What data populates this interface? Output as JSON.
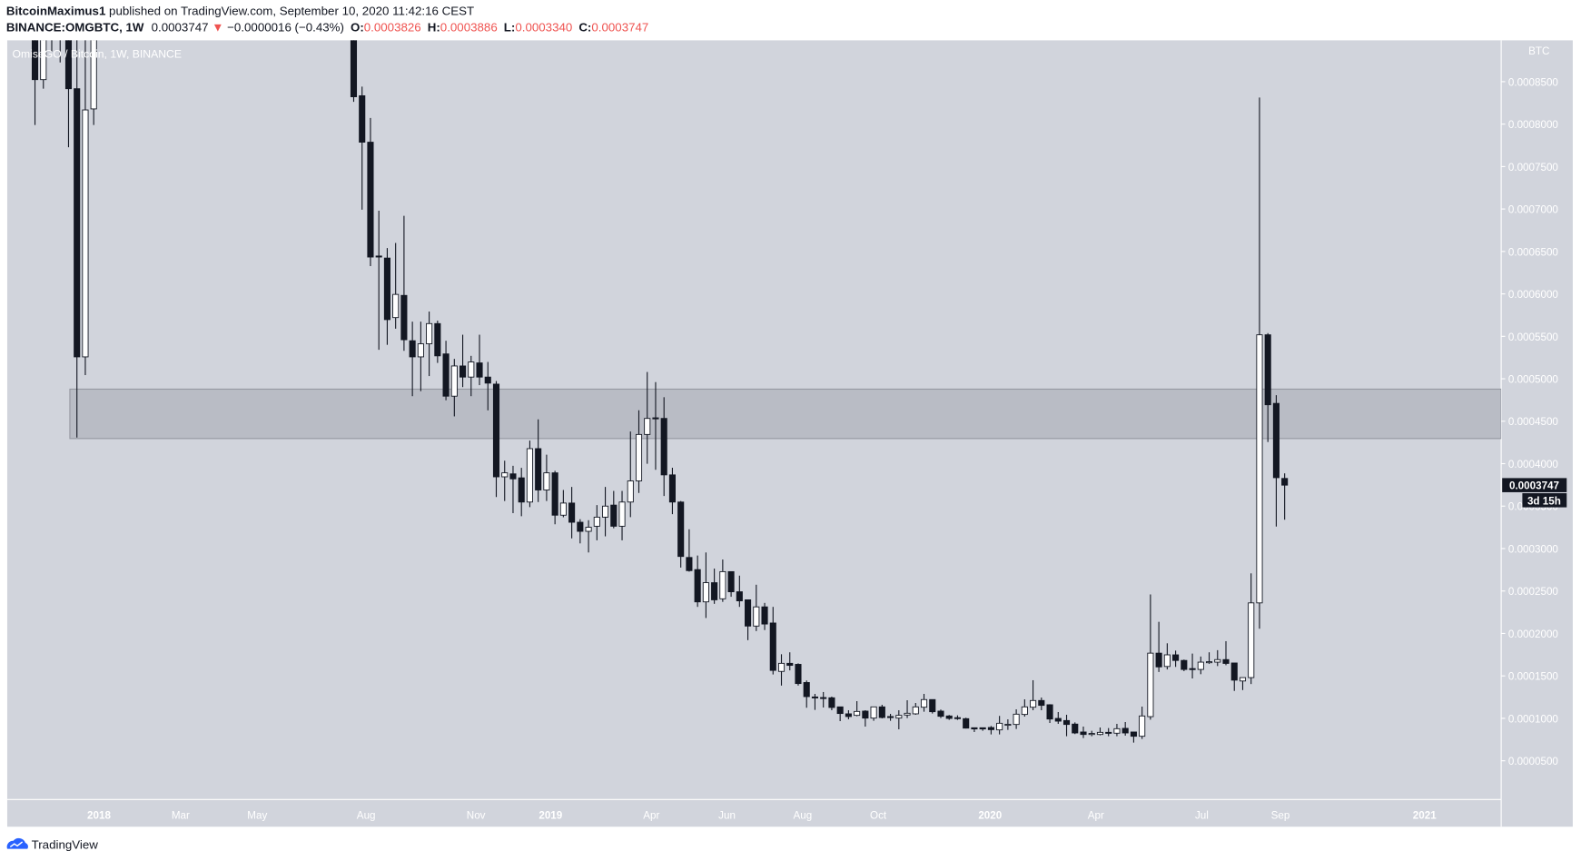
{
  "header": {
    "author": "BitcoinMaximus1",
    "published": " published on TradingView.com, September 10, 2020 11:42:16 CEST",
    "symbol": "BINANCE:OMGBTC, 1W",
    "last": "0.0003747",
    "change": "−0.0000016 (−0.43%)",
    "o_label": "O:",
    "o": "0.0003826",
    "h_label": "H:",
    "h": "0.0003886",
    "l_label": "L:",
    "l": "0.0003340",
    "c_label": "C:",
    "c": "0.0003747",
    "down_color": "#ef5350"
  },
  "chart_title": "OmiseGO / Bitcoin, 1W, BINANCE",
  "footer": {
    "brand": "TradingView"
  },
  "chart_data": {
    "type": "candlestick",
    "interval": "1W",
    "ylabel": "BTC",
    "ylim": [
      0.0,
      0.000899
    ],
    "grid": false,
    "colors": {
      "up": "#ffffff",
      "down": "#131722",
      "background": "#d1d4dc",
      "zone": "#b9bcc5"
    },
    "y_ticks": [
      "0.0008500",
      "0.0008000",
      "0.0007500",
      "0.0007000",
      "0.0006500",
      "0.0006000",
      "0.0005500",
      "0.0005000",
      "0.0004500",
      "0.0004000",
      "0.0003500",
      "0.0003000",
      "0.0002500",
      "0.0002000",
      "0.0001500",
      "0.0001000",
      "0.0000500"
    ],
    "x_ticks": [
      "2018",
      "Mar",
      "May",
      "Aug",
      "Nov",
      "2019",
      "Apr",
      "Jun",
      "Aug",
      "Oct",
      "2020",
      "Apr",
      "Jul",
      "Sep",
      "2021"
    ],
    "last_price": "0.0003747",
    "countdown": "3d 15h",
    "zone": {
      "top": 0.0004878,
      "bottom": 0.0004296,
      "start": "2017-12-04"
    },
    "columns": [
      "date",
      "open",
      "high",
      "low",
      "close"
    ],
    "candles": [
      [
        "2017-10-30",
        0.00095,
        0.00098,
        0.0007989,
        0.0008524
      ],
      [
        "2017-11-06",
        0.0008524,
        0.00096,
        0.0008417,
        0.00093
      ],
      [
        "2017-11-13",
        0.00094,
        0.00099,
        0.0008856,
        0.00096
      ],
      [
        "2017-11-20",
        0.00097,
        0.001,
        0.0008726,
        0.00093
      ],
      [
        "2017-11-27",
        0.00094,
        0.00098,
        0.0007728,
        0.0008417
      ],
      [
        "2017-12-04",
        0.0008417,
        0.00092,
        0.0004308,
        0.0005258
      ],
      [
        "2017-12-11",
        0.0005258,
        0.00091,
        0.0005044,
        0.0008167
      ],
      [
        "2017-12-18",
        0.0008179,
        0.00105,
        0.0007989,
        0.00098
      ],
      [
        "2018-07-23",
        0.00092,
        0.00094,
        0.0008262,
        0.0008322
      ],
      [
        "2018-07-30",
        0.0008334,
        0.0008441,
        0.0006992,
        0.0007787
      ],
      [
        "2018-08-06",
        0.0007787,
        0.0008072,
        0.0006327,
        0.0006434
      ],
      [
        "2018-08-13",
        0.0006446,
        0.000698,
        0.0005341,
        0.000644
      ],
      [
        "2018-08-20",
        0.0006422,
        0.000654,
        0.00054,
        0.0005697
      ],
      [
        "2018-08-27",
        0.0005721,
        0.00066,
        0.000559,
        0.0005994
      ],
      [
        "2018-09-03",
        0.0005982,
        0.000692,
        0.0005329,
        0.000546
      ],
      [
        "2018-09-10",
        0.0005448,
        0.0005673,
        0.0004795,
        0.0005258
      ],
      [
        "2018-09-17",
        0.0005258,
        0.0005673,
        0.0004854,
        0.0005412
      ],
      [
        "2018-09-24",
        0.0005412,
        0.0005792,
        0.0005032,
        0.000565
      ],
      [
        "2018-10-01",
        0.000565,
        0.0005685,
        0.0005187,
        0.000527
      ],
      [
        "2018-10-08",
        0.0005293,
        0.0005448,
        0.0004747,
        0.0004795
      ],
      [
        "2018-10-15",
        0.0004795,
        0.0005234,
        0.0004557,
        0.0005151
      ],
      [
        "2018-10-22",
        0.0005151,
        0.0005519,
        0.0004902,
        0.000502
      ],
      [
        "2018-10-29",
        0.000502,
        0.000527,
        0.0004795,
        0.0005198
      ],
      [
        "2018-11-05",
        0.0005187,
        0.0005519,
        0.0004925,
        0.000502
      ],
      [
        "2018-11-12",
        0.000502,
        0.0005198,
        0.0004628,
        0.0004949
      ],
      [
        "2018-11-19",
        0.0004937,
        0.0004973,
        0.0003607,
        0.0003845
      ],
      [
        "2018-11-26",
        0.0003845,
        0.0004035,
        0.000356,
        0.0003892
      ],
      [
        "2018-12-03",
        0.000388,
        0.0003975,
        0.0003417,
        0.0003821
      ],
      [
        "2018-12-10",
        0.0003833,
        0.0003951,
        0.0003381,
        0.0003548
      ],
      [
        "2018-12-17",
        0.0003548,
        0.0004272,
        0.0003488,
        0.0004177
      ],
      [
        "2018-12-24",
        0.0004177,
        0.0004522,
        0.0003548,
        0.000369
      ],
      [
        "2018-12-31",
        0.000369,
        0.0004106,
        0.000356,
        0.0003892
      ],
      [
        "2019-01-07",
        0.0003892,
        0.0003916,
        0.0003286,
        0.0003393
      ],
      [
        "2019-01-14",
        0.0003393,
        0.000369,
        0.0003369,
        0.0003536
      ],
      [
        "2019-01-21",
        0.0003536,
        0.0003726,
        0.000312,
        0.000331
      ],
      [
        "2019-01-28",
        0.000331,
        0.0003346,
        0.0003061,
        0.0003203
      ],
      [
        "2019-02-04",
        0.0003203,
        0.0003334,
        0.0002954,
        0.0003251
      ],
      [
        "2019-02-11",
        0.0003263,
        0.0003512,
        0.0003097,
        0.000337
      ],
      [
        "2019-02-18",
        0.000337,
        0.0003726,
        0.0003144,
        0.00035
      ],
      [
        "2019-02-25",
        0.0003512,
        0.0003679,
        0.0003239,
        0.0003263
      ],
      [
        "2019-03-04",
        0.0003263,
        0.0003679,
        0.0003097,
        0.0003548
      ],
      [
        "2019-03-11",
        0.0003548,
        0.0004379,
        0.000337,
        0.0003797
      ],
      [
        "2019-03-18",
        0.0003797,
        0.0004629,
        0.0003655,
        0.0004344
      ],
      [
        "2019-03-25",
        0.0004344,
        0.000508,
        0.0003999,
        0.0004533
      ],
      [
        "2019-04-01",
        0.000454,
        0.0004961,
        0.0003928,
        0.0004528
      ],
      [
        "2019-04-08",
        0.0004533,
        0.0004783,
        0.0003619,
        0.0003868
      ],
      [
        "2019-04-15",
        0.0003868,
        0.0003952,
        0.0003405,
        0.0003548
      ],
      [
        "2019-04-22",
        0.0003548,
        0.000356,
        0.0002776,
        0.0002907
      ],
      [
        "2019-04-29",
        0.0002895,
        0.0003227,
        0.0002728,
        0.000274
      ],
      [
        "2019-05-06",
        0.0002752,
        0.0002918,
        0.0002313,
        0.0002372
      ],
      [
        "2019-05-13",
        0.0002372,
        0.0002954,
        0.0002182,
        0.0002598
      ],
      [
        "2019-05-20",
        0.0002598,
        0.0002764,
        0.0002349,
        0.0002396
      ],
      [
        "2019-05-27",
        0.0002408,
        0.0002871,
        0.0002372,
        0.0002728
      ],
      [
        "2019-06-03",
        0.0002728,
        0.0002728,
        0.0002432,
        0.0002491
      ],
      [
        "2019-06-10",
        0.0002491,
        0.0002681,
        0.0002313,
        0.0002384
      ],
      [
        "2019-06-17",
        0.0002396,
        0.0002396,
        0.0001921,
        0.0002087
      ],
      [
        "2019-06-24",
        0.0002087,
        0.0002574,
        0.0002028,
        0.0002313
      ],
      [
        "2019-07-01",
        0.0002313,
        0.000236,
        0.000204,
        0.0002111
      ],
      [
        "2019-07-08",
        0.0002123,
        0.0002313,
        0.0001517,
        0.0001565
      ],
      [
        "2019-07-15",
        0.0001553,
        0.0001755,
        0.0001386,
        0.0001648
      ],
      [
        "2019-07-22",
        0.0001648,
        0.0001778,
        0.0001565,
        0.0001624
      ],
      [
        "2019-07-29",
        0.0001636,
        0.0001648,
        0.0001386,
        0.000141
      ],
      [
        "2019-08-05",
        0.0001422,
        0.0001446,
        0.0001125,
        0.0001256
      ],
      [
        "2019-08-12",
        0.0001252,
        0.0001288,
        0.0001099,
        0.0001245
      ],
      [
        "2019-08-19",
        0.0001245,
        0.000131,
        0.0001128,
        0.0001242
      ],
      [
        "2019-08-26",
        0.0001242,
        0.0001256,
        0.0001096,
        0.0001128
      ],
      [
        "2019-09-02",
        0.0001135,
        0.0001135,
        9.67e-05,
        0.0001057
      ],
      [
        "2019-09-09",
        0.0001053,
        0.0001096,
        9.89e-05,
        0.0001021
      ],
      [
        "2019-09-16",
        0.0001035,
        0.0001203,
        0.0001024,
        0.0001081
      ],
      [
        "2019-09-23",
        0.0001085,
        0.0001096,
        9.03e-05,
        0.0001003
      ],
      [
        "2019-09-30",
        0.0001003,
        0.0001135,
        9.71e-05,
        0.0001135
      ],
      [
        "2019-10-07",
        0.0001135,
        0.000116,
        9.99e-05,
        0.000101
      ],
      [
        "2019-10-14",
        0.0001021,
        0.0001053,
        9.71e-05,
        0.0001014
      ],
      [
        "2019-10-21",
        0.0001003,
        0.0001096,
        8.71e-05,
        0.0001035
      ],
      [
        "2019-10-28",
        0.0001039,
        0.0001213,
        0.0001003,
        0.000106
      ],
      [
        "2019-11-04",
        0.0001053,
        0.0001181,
        0.0001042,
        0.0001135
      ],
      [
        "2019-11-11",
        0.0001131,
        0.0001288,
        0.0001078,
        0.0001221
      ],
      [
        "2019-11-18",
        0.0001221,
        0.0001224,
        0.0001057,
        0.0001078
      ],
      [
        "2019-11-25",
        0.0001085,
        0.0001103,
        0.0001003,
        0.0001024
      ],
      [
        "2019-12-02",
        0.0001028,
        0.0001039,
        9.82e-05,
        9.99e-05
      ],
      [
        "2019-12-09",
        0.0001008,
        0.0001035,
        9.82e-05,
        0.0001003
      ],
      [
        "2019-12-16",
        9.96e-05,
        0.0001007,
        8.8e-05,
        8.85e-05
      ],
      [
        "2019-12-23",
        8.89e-05,
        8.89e-05,
        8.39e-05,
        8.75e-05
      ],
      [
        "2019-12-30",
        8.89e-05,
        8.89e-05,
        8.53e-05,
        8.75e-05
      ],
      [
        "2020-01-06",
        8.92e-05,
        9.1e-05,
        8.1e-05,
        8.67e-05
      ],
      [
        "2020-01-13",
        8.64e-05,
        0.0001028,
        8.1e-05,
        9.42e-05
      ],
      [
        "2020-01-20",
        9.25e-05,
        9.89e-05,
        8.64e-05,
        9.3e-05
      ],
      [
        "2020-01-27",
        9.28e-05,
        0.0001106,
        8.75e-05,
        0.0001049
      ],
      [
        "2020-02-03",
        0.0001046,
        0.0001224,
        0.0001021,
        0.0001135
      ],
      [
        "2020-02-10",
        0.0001131,
        0.0001449,
        0.0001096,
        0.000121
      ],
      [
        "2020-02-17",
        0.000121,
        0.0001245,
        0.0001096,
        0.0001153
      ],
      [
        "2020-02-24",
        0.000116,
        0.0001167,
        9.46e-05,
        9.92e-05
      ],
      [
        "2020-03-02",
        9.99e-05,
        0.0001074,
        9.35e-05,
        9.67e-05
      ],
      [
        "2020-03-09",
        9.74e-05,
        0.0001042,
        7.89e-05,
        9.28e-05
      ],
      [
        "2020-03-16",
        9.32e-05,
        9.53e-05,
        8.14e-05,
        8.28e-05
      ],
      [
        "2020-03-23",
        8.39e-05,
        9.03e-05,
        7.68e-05,
        8.1e-05
      ],
      [
        "2020-03-30",
        8.18e-05,
        8.53e-05,
        7.89e-05,
        8.22e-05
      ],
      [
        "2020-04-06",
        8.1e-05,
        8.92e-05,
        8e-05,
        8.35e-05
      ],
      [
        "2020-04-13",
        8.35e-05,
        8.85e-05,
        7.89e-05,
        8.28e-05
      ],
      [
        "2020-04-20",
        8.25e-05,
        9.35e-05,
        7.89e-05,
        8.78e-05
      ],
      [
        "2020-04-27",
        8.82e-05,
        9.57e-05,
        7.96e-05,
        8.28e-05
      ],
      [
        "2020-05-04",
        8.39e-05,
        8.39e-05,
        7.14e-05,
        7.89e-05
      ],
      [
        "2020-05-11",
        7.89e-05,
        0.0001138,
        7.57e-05,
        0.0001028
      ],
      [
        "2020-05-18",
        0.000102,
        0.000246,
        9.85e-05,
        0.0001768
      ],
      [
        "2020-05-25",
        0.0001768,
        0.0002137,
        0.0001546,
        0.0001606
      ],
      [
        "2020-06-01",
        0.0001611,
        0.0001884,
        0.0001576,
        0.0001748
      ],
      [
        "2020-06-08",
        0.0001748,
        0.0001798,
        0.0001606,
        0.0001682
      ],
      [
        "2020-06-15",
        0.0001682,
        0.0001692,
        0.0001556,
        0.0001576
      ],
      [
        "2020-06-22",
        0.0001586,
        0.0001763,
        0.000147,
        0.0001581
      ],
      [
        "2020-06-29",
        0.0001576,
        0.0001728,
        0.000152,
        0.0001662
      ],
      [
        "2020-07-06",
        0.0001664,
        0.0001778,
        0.0001642,
        0.0001667
      ],
      [
        "2020-07-13",
        0.0001662,
        0.0001803,
        0.0001616,
        0.0001692
      ],
      [
        "2020-07-20",
        0.0001692,
        0.0001909,
        0.0001626,
        0.0001647
      ],
      [
        "2020-07-27",
        0.0001652,
        0.0001652,
        0.0001323,
        0.000145
      ],
      [
        "2020-08-03",
        0.000144,
        0.000148,
        0.0001333,
        0.000148
      ],
      [
        "2020-08-10",
        0.000148,
        0.0002708,
        0.0001404,
        0.000236
      ],
      [
        "2020-08-17",
        0.000236,
        0.0008313,
        0.0002056,
        0.0005518
      ],
      [
        "2020-08-24",
        0.0005518,
        0.0005538,
        0.0004255,
        0.0004694
      ],
      [
        "2020-08-31",
        0.000471,
        0.0004806,
        0.0003259,
        0.0003835
      ],
      [
        "2020-09-07",
        0.0003826,
        0.0003886,
        0.000334,
        0.0003747
      ]
    ]
  }
}
